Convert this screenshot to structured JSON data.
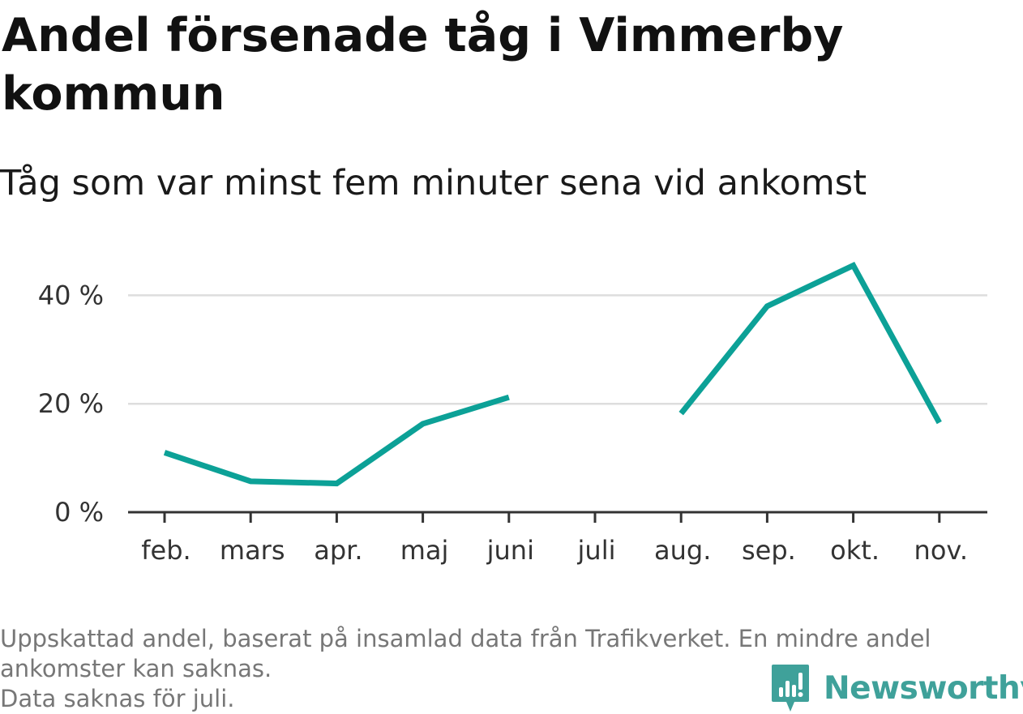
{
  "header": {
    "title": "Andel försenade tåg i Vimmerby kommun",
    "subtitle": "Tåg som var minst fem minuter sena vid ankomst"
  },
  "chart_data": {
    "type": "line",
    "title": "Andel försenade tåg i Vimmerby kommun",
    "subtitle": "Tåg som var minst fem minuter sena vid ankomst",
    "categories": [
      "feb.",
      "mars",
      "apr.",
      "maj",
      "juni",
      "juli",
      "aug.",
      "sep.",
      "okt.",
      "nov."
    ],
    "series": [
      {
        "name": "Andel försenade tåg",
        "values": [
          11,
          5.7,
          5.3,
          16.3,
          21.2,
          null,
          18.2,
          38,
          45.5,
          16.5
        ]
      }
    ],
    "yticks": [
      0,
      20,
      40
    ],
    "ytick_labels": [
      "0 %",
      "20 %",
      "40 %"
    ],
    "ylim": [
      0,
      50
    ],
    "xlabel": "",
    "ylabel": "",
    "grid": true,
    "line_color": "#0ca197"
  },
  "footer": {
    "note_line1": "Uppskattad andel, baserat på insamlad data från Trafikverket. En mindre andel",
    "note_line2": "ankomster kan saknas.",
    "note_line3": "Data saknas för juli.",
    "brand": "Newsworthy",
    "brand_color": "#3fa19a"
  }
}
